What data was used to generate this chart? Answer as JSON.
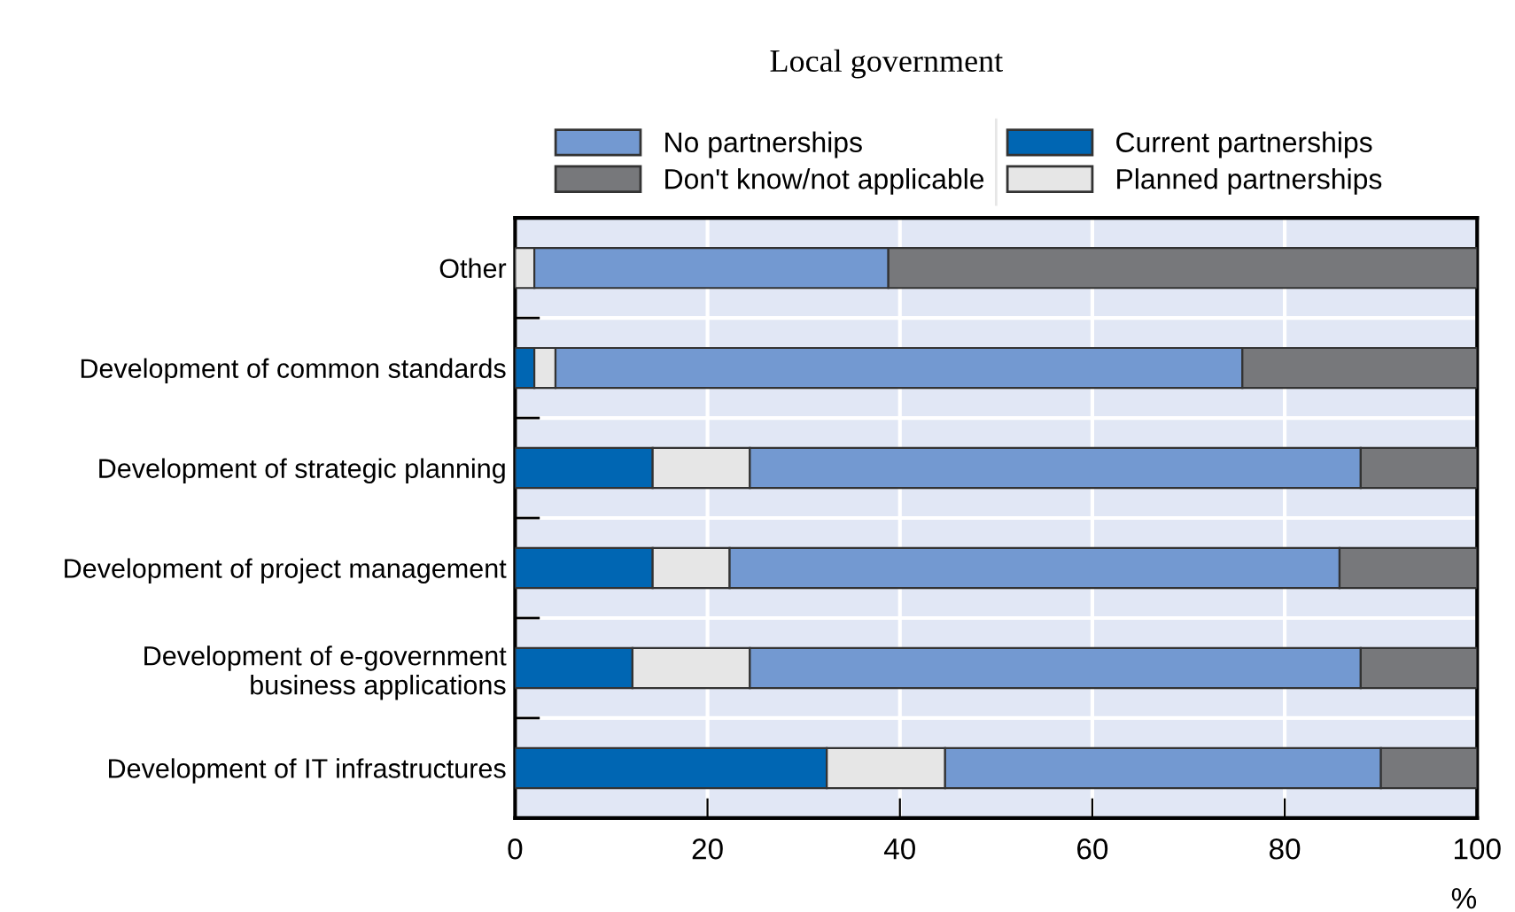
{
  "chart_data": {
    "type": "bar",
    "orientation": "horizontal",
    "stacked": true,
    "title": "Local government",
    "xlabel": "%",
    "categories": [
      "Other",
      "Development of common standards",
      "Development of strategic planning",
      "Development of project management",
      "Development of e-government\nbusiness applications",
      "Development of IT infrastructures"
    ],
    "series": [
      {
        "name": "Current partnerships",
        "color": "#0066b3",
        "values": [
          0,
          2.0,
          14.3,
          14.3,
          12.2,
          32.4
        ]
      },
      {
        "name": "Planned partnerships",
        "color": "#e6e6e6",
        "values": [
          2.0,
          2.2,
          10.1,
          8.0,
          12.2,
          12.3
        ]
      },
      {
        "name": "No partnerships",
        "color": "#7399d1",
        "values": [
          36.8,
          71.4,
          63.5,
          63.4,
          63.5,
          45.3
        ]
      },
      {
        "name": "Don't know/not applicable",
        "color": "#77787b",
        "values": [
          61.2,
          24.4,
          12.1,
          14.3,
          12.1,
          10.0
        ]
      }
    ],
    "xlim": [
      0,
      100
    ],
    "xticks": [
      0,
      20,
      40,
      60,
      80,
      100
    ],
    "grid": true,
    "legend": "top"
  }
}
